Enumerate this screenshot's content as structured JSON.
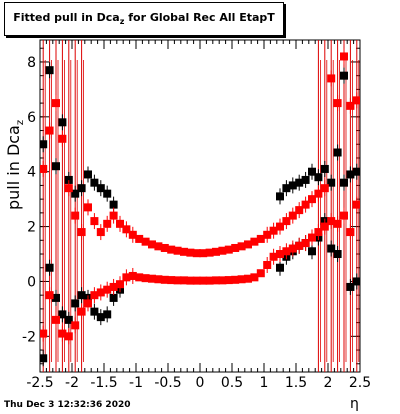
{
  "title_main": "Fitted pull in Dca",
  "title_sub": "z",
  "title_rest": " for Global Rec All EtapT",
  "ylabel_main": "pull in Dca",
  "ylabel_sub": "z",
  "xlabel": "η",
  "datestamp": "Thu Dec  3 12:32:36 2020",
  "colors": {
    "series_black": "#000000",
    "series_red": "#ff0000",
    "errorbar_red": "#dd0000"
  },
  "chart_data": {
    "type": "scatter",
    "xlim": [
      -2.5,
      2.5
    ],
    "ylim": [
      -3.3,
      8.8
    ],
    "xticks": [
      "-2.5",
      "-2",
      "-1.5",
      "-1",
      "-0.5",
      "0",
      "0.5",
      "1",
      "1.5",
      "2",
      "2.5"
    ],
    "yticks": [
      "-2",
      "0",
      "2",
      "4",
      "6",
      "8"
    ],
    "x": [
      -2.45,
      -2.35,
      -2.25,
      -2.15,
      -2.05,
      -1.95,
      -1.85,
      -1.75,
      -1.65,
      -1.55,
      -1.45,
      -1.35,
      -1.25,
      -1.15,
      -1.05,
      -0.95,
      -0.85,
      -0.75,
      -0.65,
      -0.55,
      -0.45,
      -0.35,
      -0.25,
      -0.15,
      -0.05,
      0.05,
      0.15,
      0.25,
      0.35,
      0.45,
      0.55,
      0.65,
      0.75,
      0.85,
      0.95,
      1.05,
      1.15,
      1.25,
      1.35,
      1.45,
      1.55,
      1.65,
      1.75,
      1.85,
      1.95,
      2.05,
      2.15,
      2.25,
      2.35,
      2.45
    ],
    "series": [
      {
        "color": "black",
        "upper": [
          5.0,
          7.7,
          4.2,
          5.8,
          3.7,
          3.2,
          3.4,
          3.9,
          3.6,
          3.4,
          3.2,
          2.8,
          null,
          null,
          null,
          null,
          null,
          null,
          null,
          null,
          null,
          null,
          null,
          null,
          null,
          null,
          null,
          null,
          null,
          null,
          null,
          null,
          null,
          null,
          null,
          null,
          null,
          3.1,
          3.4,
          3.5,
          3.6,
          3.7,
          4.0,
          3.8,
          4.1,
          3.6,
          4.7,
          7.5,
          3.9,
          4.0
        ],
        "lower": [
          -2.8,
          0.5,
          -0.6,
          -1.2,
          -1.4,
          -0.8,
          -0.5,
          -0.6,
          -1.1,
          -1.3,
          -1.2,
          -0.6,
          -0.3,
          null,
          null,
          null,
          null,
          null,
          null,
          null,
          null,
          null,
          null,
          null,
          null,
          null,
          null,
          null,
          null,
          null,
          null,
          null,
          null,
          null,
          null,
          null,
          null,
          0.5,
          0.9,
          1.1,
          1.3,
          1.4,
          1.1,
          1.6,
          2.2,
          1.2,
          1.0,
          3.6,
          -0.2,
          0.0
        ]
      },
      {
        "color": "red",
        "upper": [
          4.1,
          5.5,
          6.5,
          5.2,
          3.4,
          2.4,
          1.8,
          2.7,
          2.2,
          1.8,
          2.1,
          2.4,
          2.1,
          1.9,
          1.7,
          1.55,
          1.45,
          1.35,
          1.28,
          1.22,
          1.16,
          1.12,
          1.08,
          1.05,
          1.03,
          1.03,
          1.05,
          1.08,
          1.12,
          1.16,
          1.22,
          1.28,
          1.35,
          1.45,
          1.55,
          1.7,
          1.85,
          2.0,
          2.2,
          2.4,
          2.6,
          2.8,
          3.0,
          3.2,
          3.4,
          7.4,
          6.5,
          8.2,
          6.4,
          6.6
        ],
        "lower": [
          -1.9,
          -0.5,
          -1.4,
          -1.9,
          -2.0,
          -1.6,
          -1.1,
          -0.8,
          -0.5,
          -0.4,
          -0.3,
          -0.2,
          -0.1,
          0.15,
          0.2,
          0.15,
          0.12,
          0.1,
          0.08,
          0.06,
          0.05,
          0.04,
          0.04,
          0.03,
          0.03,
          0.03,
          0.03,
          0.04,
          0.04,
          0.05,
          0.06,
          0.08,
          0.1,
          0.15,
          0.3,
          0.6,
          0.9,
          1.0,
          1.1,
          1.2,
          1.3,
          1.4,
          1.6,
          1.8,
          2.0,
          2.2,
          2.1,
          2.4,
          1.8,
          2.8
        ]
      }
    ]
  }
}
